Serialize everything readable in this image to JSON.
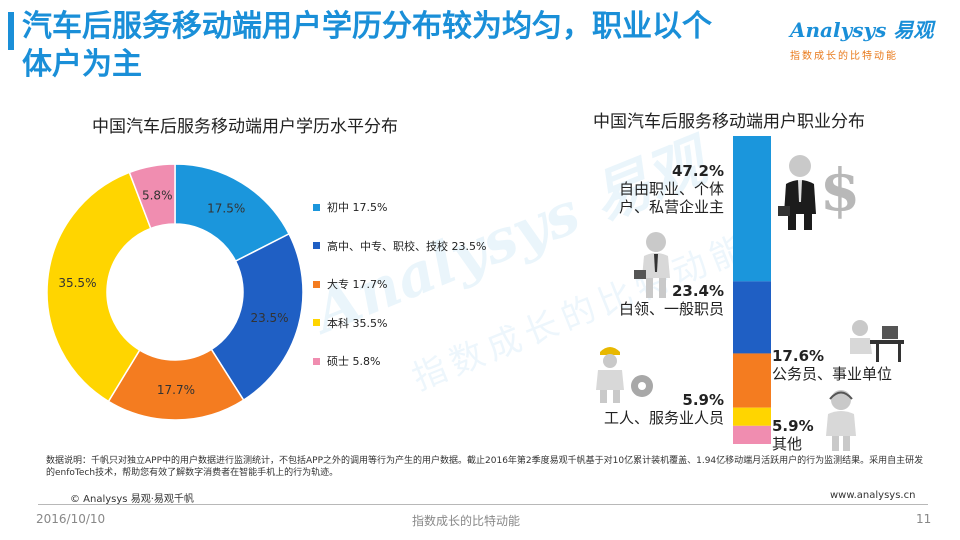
{
  "header": {
    "title": "汽车后服务移动端用户学历分布较为均匀，职业以个体户为主",
    "logo_text": "Analysys 易观",
    "logo_tagline": "指数成长的比特动能"
  },
  "watermark": {
    "main": "Analysys 易观",
    "tagline": "指数成长的比特动能"
  },
  "colors": {
    "title": "#1a8fd8",
    "accent": "#e87a1c"
  },
  "chart_data": [
    {
      "type": "pie",
      "title": "中国汽车后服务移动端用户学历水平分布",
      "categories": [
        "初中",
        "高中、中专、职校、技校",
        "大专",
        "本科",
        "硕士"
      ],
      "values": [
        17.5,
        23.5,
        17.7,
        35.5,
        5.8
      ],
      "data_labels": [
        "17.5%",
        "23.5%",
        "17.7%",
        "35.5%",
        "5.8%"
      ],
      "legend_labels": [
        "初中  17.5%",
        "高中、中专、职校、技校  23.5%",
        "大专  17.7%",
        "本科  35.5%",
        "硕士  5.8%"
      ],
      "colors": [
        "#1b96dc",
        "#1f5fc4",
        "#f47c20",
        "#ffd500",
        "#f08db0"
      ],
      "legend_position": "right"
    },
    {
      "type": "bar",
      "stacked": true,
      "title": "中国汽车后服务移动端用户职业分布",
      "categories": [
        "自由职业、个体户、私营企业主",
        "白领、一般职员",
        "公务员、事业单位",
        "工人、服务业人员",
        "其他"
      ],
      "values": [
        47.2,
        23.4,
        17.6,
        5.9,
        5.9
      ],
      "data_labels": [
        "47.2%",
        "23.4%",
        "17.6%",
        "5.9%",
        "5.9%"
      ],
      "label_lines": [
        [
          "自由职业、个体",
          "户、私营企业主"
        ],
        [
          "白领、一般职员"
        ],
        [
          "公务员、事业单位"
        ],
        [
          "工人、服务业人员"
        ],
        [
          "其他"
        ]
      ],
      "colors": [
        "#1b96dc",
        "#1f5fc4",
        "#f47c20",
        "#ffd500",
        "#f08db0"
      ]
    }
  ],
  "footer": {
    "note": "数据说明：千帆只对独立APP中的用户数据进行监测统计，不包括APP之外的调用等行为产生的用户数据。截止2016年第2季度易观千帆基于对10亿累计装机覆盖、1.94亿移动端月活跃用户的行为监测结果。采用自主研发的enfoTech技术，帮助您有效了解数字消费者在智能手机上的行为轨迹。",
    "copyright": "© Analysys 易观·易观千帆",
    "website": "www.analysys.cn",
    "date": "2016/10/10",
    "center": "指数成长的比特动能",
    "page": "11"
  }
}
